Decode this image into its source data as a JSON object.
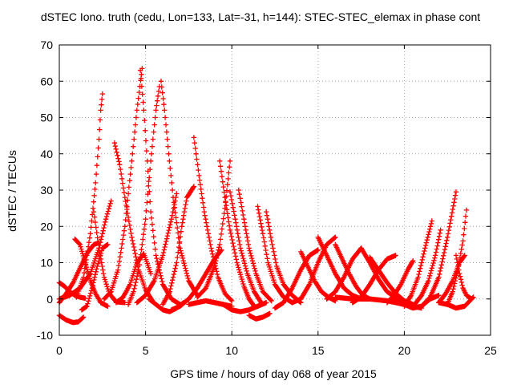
{
  "chart_data": {
    "type": "scatter",
    "title": "dSTEC Iono. truth (cedu, Lon=133, Lat=-31, h=144): STEC-STEC_elemax in phase cont",
    "xlabel": "GPS time / hours of day 068 of year 2015",
    "ylabel": "dSTEC  / TECUs",
    "xlim": [
      0,
      25
    ],
    "ylim": [
      -10,
      70
    ],
    "xticks": [
      "0",
      "5",
      "10",
      "15",
      "20",
      "25"
    ],
    "yticks": [
      "-10",
      "0",
      "10",
      "20",
      "30",
      "40",
      "50",
      "60",
      "70"
    ],
    "grid": true,
    "marker": "plus",
    "color": "#ff0000",
    "series": [
      {
        "x": [
          0.0,
          0.3,
          0.6,
          0.9,
          1.2,
          1.5
        ],
        "y": [
          4.5,
          3.5,
          2.0,
          1.0,
          0.5,
          0.2
        ]
      },
      {
        "x": [
          0.0,
          0.4,
          0.8,
          1.1,
          1.4
        ],
        "y": [
          -4.5,
          -5.8,
          -6.5,
          -6.3,
          -5.0
        ]
      },
      {
        "x": [
          0.0,
          0.6,
          1.2,
          1.8,
          2.3,
          2.7,
          3.0
        ],
        "y": [
          0.0,
          1.0,
          3.0,
          7.0,
          14.0,
          22.0,
          27.0
        ]
      },
      {
        "x": [
          0.0,
          0.4,
          0.8,
          1.2,
          1.6,
          2.0,
          2.3
        ],
        "y": [
          -1.0,
          1.5,
          4.5,
          8.5,
          12.5,
          15.0,
          15.5
        ]
      },
      {
        "x": [
          0.9,
          1.2,
          1.5,
          1.8,
          2.1,
          2.4,
          2.8
        ],
        "y": [
          16.5,
          15.0,
          10.0,
          5.0,
          1.5,
          -1.0,
          -2.0
        ]
      },
      {
        "x": [
          1.3,
          1.6,
          1.9,
          2.2,
          2.5,
          2.8
        ],
        "y": [
          -3.0,
          -2.0,
          3.0,
          9.0,
          14.0,
          15.0
        ]
      },
      {
        "x": [
          2.0,
          2.3,
          2.6,
          2.9,
          3.3,
          3.8
        ],
        "y": [
          24.0,
          14.0,
          6.0,
          1.5,
          -0.8,
          -1.0
        ]
      },
      {
        "x": [
          1.0,
          1.4,
          1.8,
          2.1,
          2.3,
          2.4,
          2.5
        ],
        "y": [
          0.5,
          6.0,
          18.0,
          32.0,
          44.0,
          52.0,
          56.5
        ]
      },
      {
        "x": [
          3.2,
          3.5,
          3.8,
          4.2,
          4.6,
          5.0,
          5.4
        ],
        "y": [
          43.0,
          37.0,
          28.0,
          17.0,
          8.0,
          2.5,
          -0.5
        ]
      },
      {
        "x": [
          2.6,
          3.0,
          3.4,
          3.8,
          4.2,
          4.5,
          4.8
        ],
        "y": [
          0.0,
          2.0,
          8.0,
          20.0,
          38.0,
          52.0,
          63.5
        ]
      },
      {
        "x": [
          4.7,
          4.9,
          5.1,
          5.3,
          5.6,
          6.0,
          6.5,
          7.0
        ],
        "y": [
          63.0,
          52.0,
          38.0,
          24.0,
          12.0,
          4.0,
          0.0,
          -1.5
        ]
      },
      {
        "x": [
          3.3,
          3.7,
          4.1,
          4.5,
          4.9,
          5.3
        ],
        "y": [
          -1.0,
          0.5,
          4.0,
          10.0,
          12.5,
          7.0
        ]
      },
      {
        "x": [
          4.0,
          4.3,
          4.6,
          5.0,
          5.3,
          5.6,
          5.8
        ],
        "y": [
          -1.5,
          2.0,
          8.0,
          22.0,
          38.0,
          52.0,
          58.5
        ]
      },
      {
        "x": [
          5.9,
          6.1,
          6.3,
          6.6,
          7.0,
          7.5,
          8.0
        ],
        "y": [
          60.0,
          52.0,
          42.0,
          28.0,
          14.0,
          5.0,
          1.0
        ]
      },
      {
        "x": [
          4.5,
          5.0,
          5.5,
          6.0,
          6.5,
          6.8
        ],
        "y": [
          -1.0,
          1.0,
          5.0,
          12.0,
          22.0,
          29.0
        ]
      },
      {
        "x": [
          5.2,
          5.6,
          6.0,
          6.4,
          6.8,
          7.2
        ],
        "y": [
          0.0,
          -1.5,
          -3.0,
          -3.5,
          -2.5,
          -1.0
        ]
      },
      {
        "x": [
          6.0,
          6.4,
          6.8,
          7.1,
          7.4,
          7.8
        ],
        "y": [
          -1.5,
          2.0,
          10.0,
          20.0,
          28.0,
          31.0
        ]
      },
      {
        "x": [
          7.8,
          8.1,
          8.4,
          8.8,
          9.2,
          9.6,
          10.0
        ],
        "y": [
          44.5,
          34.0,
          24.0,
          14.0,
          6.0,
          1.5,
          -0.5
        ]
      },
      {
        "x": [
          6.5,
          7.0,
          7.5,
          8.0,
          8.5,
          9.0,
          9.4
        ],
        "y": [
          -3.0,
          -2.0,
          0.0,
          3.0,
          7.0,
          11.0,
          13.5
        ]
      },
      {
        "x": [
          7.5,
          8.0,
          8.5,
          9.0,
          9.5,
          10.0
        ],
        "y": [
          -1.5,
          -1.0,
          -0.5,
          -1.0,
          -1.5,
          -2.0
        ]
      },
      {
        "x": [
          8.0,
          8.5,
          9.0,
          9.3,
          9.6,
          9.9
        ],
        "y": [
          0.5,
          3.0,
          9.0,
          15.0,
          25.0,
          38.0
        ]
      },
      {
        "x": [
          9.3,
          9.6,
          9.9,
          10.3,
          10.7,
          11.0,
          11.3
        ],
        "y": [
          38.0,
          28.0,
          19.0,
          10.0,
          3.5,
          0.0,
          -2.0
        ]
      },
      {
        "x": [
          9.9,
          10.2,
          10.5,
          10.9,
          11.3,
          11.7
        ],
        "y": [
          29.5,
          22.0,
          14.0,
          7.0,
          2.0,
          -1.0
        ]
      },
      {
        "x": [
          10.4,
          10.7,
          11.0,
          11.4,
          11.8,
          12.3
        ],
        "y": [
          30.0,
          22.0,
          14.0,
          7.0,
          2.0,
          -0.5
        ]
      },
      {
        "x": [
          9.5,
          10.0,
          10.5,
          11.0,
          11.5,
          12.0
        ],
        "y": [
          -1.5,
          -3.0,
          -3.5,
          -3.0,
          -2.0,
          -1.0
        ]
      },
      {
        "x": [
          11.5,
          11.8,
          12.1,
          12.5,
          13.0,
          13.5
        ],
        "y": [
          25.5,
          18.0,
          10.0,
          4.0,
          0.5,
          -1.0
        ]
      },
      {
        "x": [
          11.0,
          11.4,
          11.8,
          12.2
        ],
        "y": [
          -4.5,
          -5.5,
          -5.0,
          -4.0
        ]
      },
      {
        "x": [
          12.0,
          12.3,
          12.6,
          13.0,
          13.5,
          14.0
        ],
        "y": [
          24.0,
          16.0,
          9.0,
          4.0,
          1.0,
          -1.0
        ]
      },
      {
        "x": [
          12.5,
          13.0,
          13.5,
          14.0,
          14.5,
          15.0
        ],
        "y": [
          -2.5,
          -1.0,
          3.0,
          8.0,
          12.0,
          13.5
        ]
      },
      {
        "x": [
          14.0,
          14.4,
          14.8,
          15.2,
          15.6,
          16.0
        ],
        "y": [
          13.0,
          9.0,
          5.0,
          2.0,
          0.5,
          -0.5
        ]
      },
      {
        "x": [
          13.5,
          14.0,
          14.5,
          15.0,
          15.5,
          16.0
        ],
        "y": [
          -1.0,
          0.0,
          4.0,
          10.0,
          15.0,
          17.0
        ]
      },
      {
        "x": [
          15.0,
          15.5,
          16.0,
          16.5,
          17.0,
          17.5
        ],
        "y": [
          17.0,
          12.0,
          7.0,
          3.0,
          1.0,
          0.0
        ]
      },
      {
        "x": [
          16.0,
          16.4,
          16.8,
          17.2,
          17.6,
          18.0
        ],
        "y": [
          15.0,
          11.0,
          7.0,
          3.5,
          1.0,
          0.0
        ]
      },
      {
        "x": [
          15.5,
          16.0,
          16.5,
          17.0,
          17.5
        ],
        "y": [
          0.0,
          2.0,
          6.0,
          11.0,
          14.0
        ]
      },
      {
        "x": [
          17.5,
          18.0,
          18.5,
          19.0,
          19.5
        ],
        "y": [
          14.0,
          10.0,
          5.5,
          2.0,
          0.5
        ]
      },
      {
        "x": [
          17.0,
          17.5,
          18.0,
          18.5,
          19.0,
          19.5
        ],
        "y": [
          -1.0,
          0.5,
          4.0,
          8.0,
          11.0,
          12.0
        ]
      },
      {
        "x": [
          18.0,
          18.5,
          19.0,
          19.5,
          20.0,
          20.5
        ],
        "y": [
          11.5,
          8.0,
          4.5,
          1.5,
          -0.5,
          -1.5
        ]
      },
      {
        "x": [
          19.0,
          19.4,
          19.8,
          20.2,
          20.5
        ],
        "y": [
          -1.0,
          1.0,
          4.0,
          8.0,
          10.5
        ]
      },
      {
        "x": [
          16.0,
          17.0,
          18.0,
          19.0,
          20.0,
          21.0
        ],
        "y": [
          0.5,
          0.0,
          0.0,
          -0.5,
          -1.5,
          -2.5
        ]
      },
      {
        "x": [
          19.5,
          20.0,
          20.5,
          21.0,
          21.5,
          22.0
        ],
        "y": [
          0.0,
          -1.5,
          -2.5,
          -2.0,
          0.0,
          1.0
        ]
      },
      {
        "x": [
          20.0,
          20.4,
          20.8,
          21.2,
          21.6
        ],
        "y": [
          -2.0,
          1.0,
          6.0,
          14.0,
          21.5
        ]
      },
      {
        "x": [
          20.6,
          21.0,
          21.4,
          21.8,
          22.1
        ],
        "y": [
          -1.5,
          1.0,
          5.0,
          12.0,
          19.0
        ]
      },
      {
        "x": [
          21.0,
          21.5,
          22.0,
          22.5,
          23.0
        ],
        "y": [
          -2.0,
          0.5,
          6.0,
          17.0,
          29.5
        ]
      },
      {
        "x": [
          22.0,
          22.4,
          22.8,
          23.2,
          23.5
        ],
        "y": [
          -1.0,
          1.5,
          5.0,
          10.0,
          12.0
        ]
      },
      {
        "x": [
          23.0,
          23.2,
          23.4,
          23.6,
          23.9
        ],
        "y": [
          12.0,
          7.0,
          3.0,
          1.0,
          0.0
        ]
      },
      {
        "x": [
          22.5,
          22.8,
          23.1,
          23.4,
          23.6
        ],
        "y": [
          -1.5,
          2.0,
          8.0,
          16.0,
          24.5
        ]
      },
      {
        "x": [
          22.0,
          22.5,
          23.0,
          23.5,
          24.0
        ],
        "y": [
          -1.0,
          -1.5,
          -2.5,
          -2.0,
          0.5
        ]
      }
    ]
  }
}
